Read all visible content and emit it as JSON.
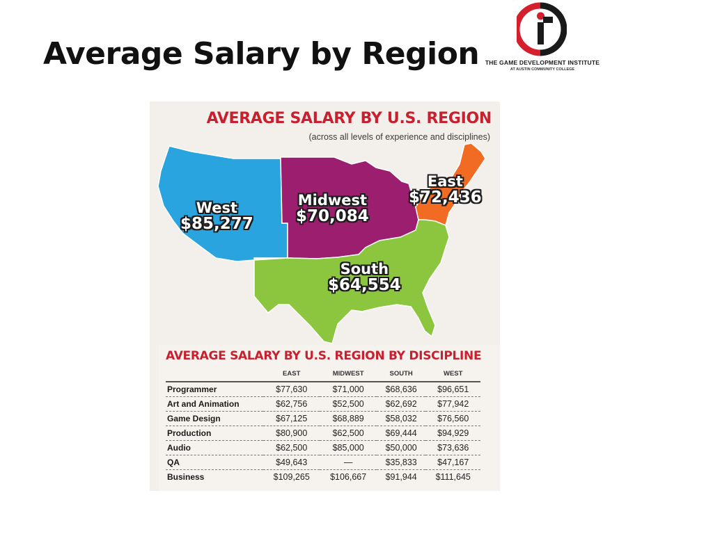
{
  "slide": {
    "title": "Average Salary by Region"
  },
  "logo": {
    "text_line1": "THE GAME DEVELOPMENT INSTITUTE",
    "text_line2": "AT AUSTIN COMMUNITY COLLEGE",
    "colors": {
      "red": "#d4202c",
      "black": "#1a1a1a"
    }
  },
  "infographic": {
    "map_title": "AVERAGE SALARY BY U.S. REGION",
    "map_subtitle": "(across all levels of experience and disciplines)",
    "regions": [
      {
        "name": "West",
        "salary": "$85,277",
        "color": "#29a4df"
      },
      {
        "name": "Midwest",
        "salary": "$70,084",
        "color": "#9b1f6e"
      },
      {
        "name": "South",
        "salary": "$64,554",
        "color": "#8cc63f"
      },
      {
        "name": "East",
        "salary": "$72,436",
        "color": "#f26b22"
      }
    ],
    "table_title": "AVERAGE SALARY BY U.S. REGION BY DISCIPLINE",
    "table": {
      "columns": [
        "EAST",
        "MIDWEST",
        "SOUTH",
        "WEST"
      ],
      "rows": [
        {
          "discipline": "Programmer",
          "values": [
            "$77,630",
            "$71,000",
            "$68,636",
            "$96,651"
          ]
        },
        {
          "discipline": "Art and Animation",
          "values": [
            "$62,756",
            "$52,500",
            "$62,692",
            "$77,942"
          ]
        },
        {
          "discipline": "Game Design",
          "values": [
            "$67,125",
            "$68,889",
            "$58,032",
            "$76,560"
          ]
        },
        {
          "discipline": "Production",
          "values": [
            "$80,900",
            "$62,500",
            "$69,444",
            "$94,929"
          ]
        },
        {
          "discipline": "Audio",
          "values": [
            "$62,500",
            "$85,000",
            "$50,000",
            "$73,636"
          ]
        },
        {
          "discipline": "QA",
          "values": [
            "$49,643",
            "—",
            "$35,833",
            "$47,167"
          ]
        },
        {
          "discipline": "Business",
          "values": [
            "$109,265",
            "$106,667",
            "$91,944",
            "$111,645"
          ]
        }
      ]
    }
  }
}
